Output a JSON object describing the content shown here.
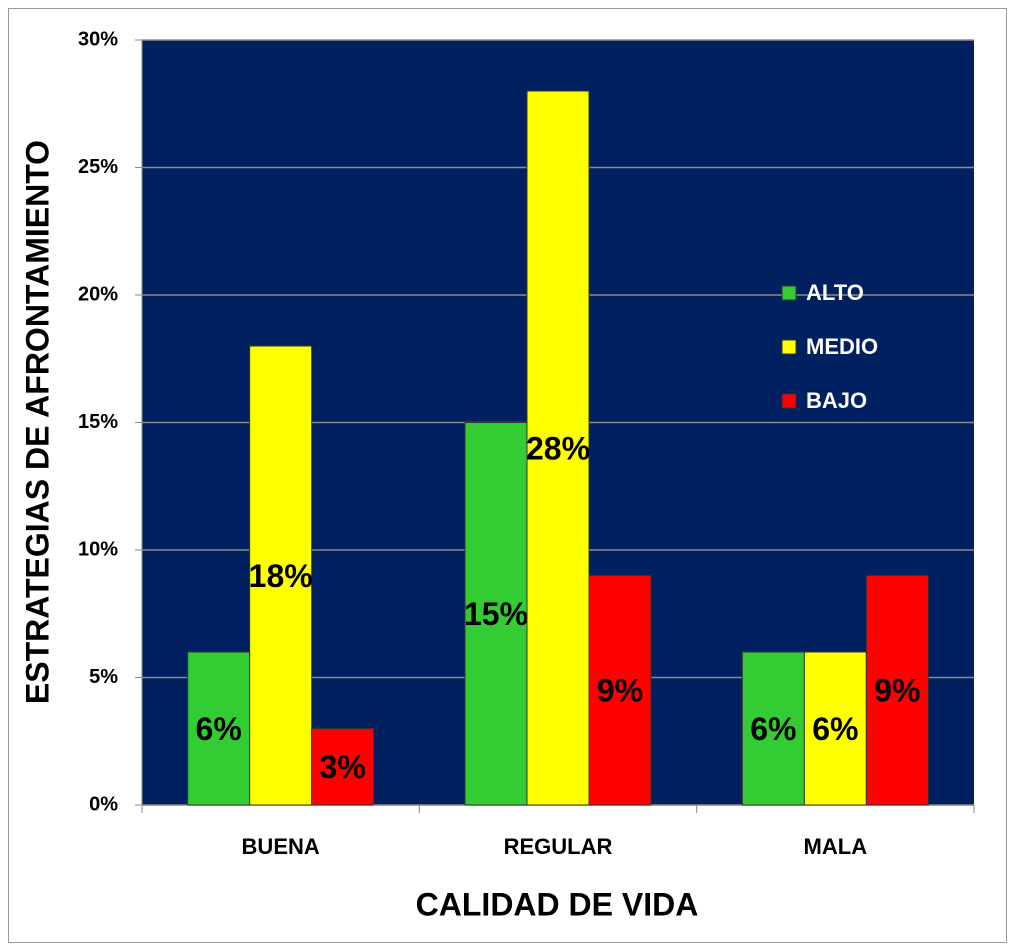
{
  "chart_data": {
    "type": "bar",
    "x_label": "CALIDAD DE VIDA",
    "y_label": "ESTRATEGIAS DE AFRONTAMIENTO",
    "categories": [
      "BUENA",
      "REGULAR",
      "MALA"
    ],
    "series": [
      {
        "name": "ALTO",
        "color": "#33cc33",
        "values": [
          6,
          15,
          6
        ],
        "value_labels": [
          "6%",
          "15%",
          "6%"
        ]
      },
      {
        "name": "MEDIO",
        "color": "#ffff00",
        "values": [
          18,
          28,
          6
        ],
        "value_labels": [
          "18%",
          "28%",
          "6%"
        ]
      },
      {
        "name": "BAJO",
        "color": "#ff0000",
        "values": [
          3,
          9,
          9
        ],
        "value_labels": [
          "3%",
          "9%",
          "9%"
        ]
      }
    ],
    "ylim": [
      0,
      30
    ],
    "yticks": [
      {
        "value": 0,
        "label": "0%"
      },
      {
        "value": 5,
        "label": "5%"
      },
      {
        "value": 10,
        "label": "10%"
      },
      {
        "value": 15,
        "label": "15%"
      },
      {
        "value": 20,
        "label": "20%"
      },
      {
        "value": 25,
        "label": "25%"
      },
      {
        "value": 30,
        "label": "30%"
      }
    ],
    "grid": true,
    "legend": "right",
    "plot_background": "#002060"
  }
}
